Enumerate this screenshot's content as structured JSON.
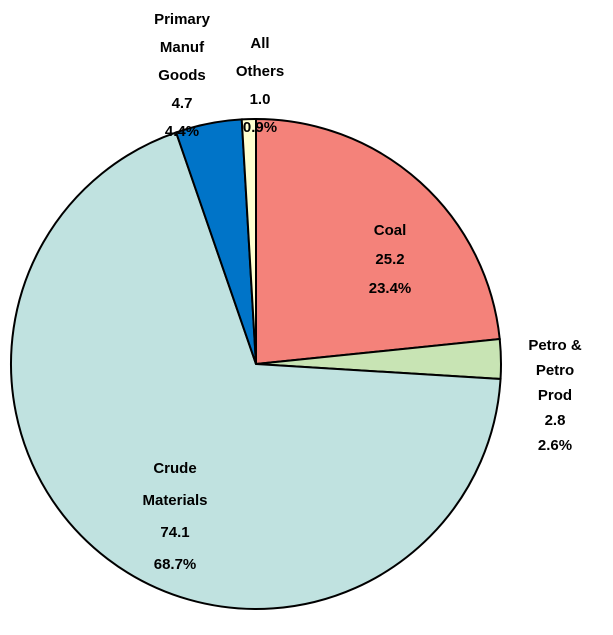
{
  "chart_data": {
    "type": "pie",
    "categories": [
      "Coal",
      "Petro &\nPetro Prod",
      "Crude\nMaterials",
      "Primary\nManuf\nGoods",
      "All\nOthers"
    ],
    "values": [
      25.2,
      2.8,
      74.1,
      4.7,
      1.0
    ],
    "value_labels": [
      "25.2",
      "2.8",
      "74.1",
      "4.7",
      "1.0"
    ],
    "percent_labels": [
      "23.4%",
      "2.6%",
      "68.7%",
      "4.4%",
      "0.9%"
    ],
    "colors": [
      "#F4827A",
      "#C8E4B4",
      "#C0E2E0",
      "#0074C8",
      "#FFFFD0"
    ]
  }
}
